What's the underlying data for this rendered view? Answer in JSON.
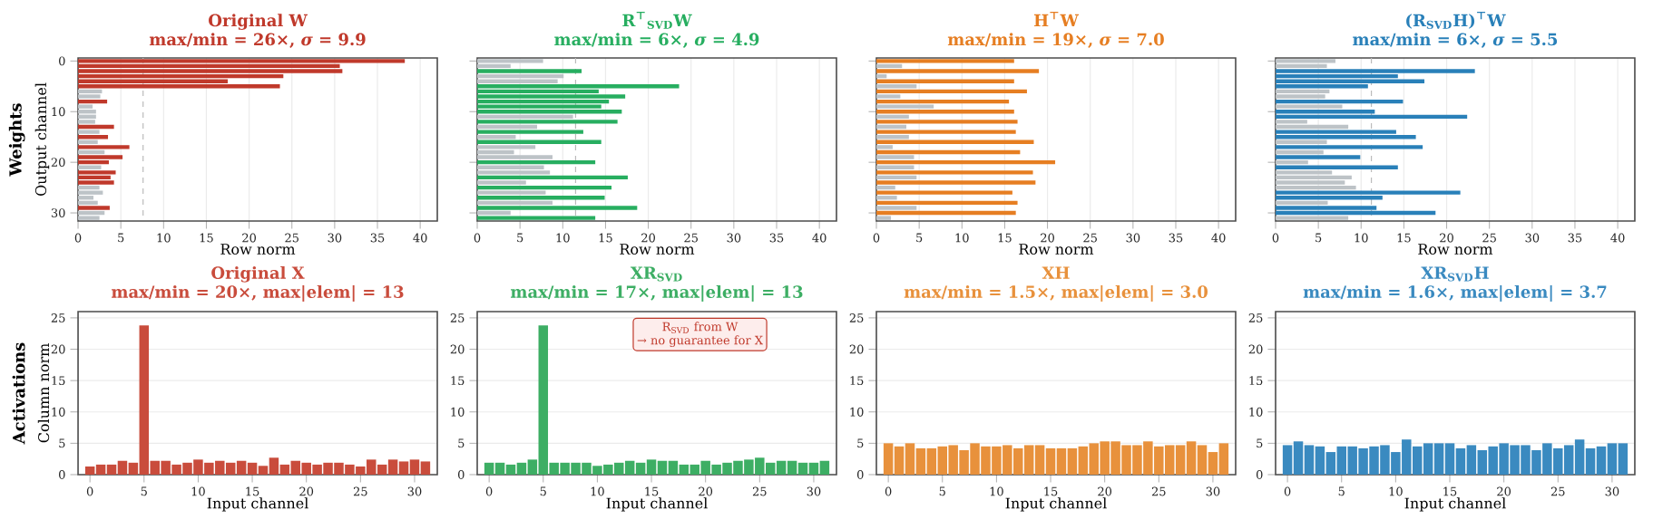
{
  "chart_data": [
    {
      "type": "bar",
      "orientation": "horizontal",
      "title": "Original W",
      "subtitle": "max/min = 26×,  *σ* = 9.9",
      "xlabel": "Row norm",
      "ylabel": "Output channel",
      "annotations": [
        "Weights"
      ],
      "color": "#c0392b",
      "grid": "x",
      "xlim": [
        0,
        42
      ],
      "xticks": [
        0,
        5,
        10,
        15,
        20,
        25,
        30,
        35,
        40
      ],
      "categories": [
        "0",
        null,
        null,
        null,
        null,
        null,
        null,
        null,
        null,
        null,
        "10",
        null,
        null,
        null,
        null,
        null,
        null,
        null,
        null,
        null,
        "20",
        null,
        null,
        null,
        null,
        null,
        null,
        null,
        null,
        null,
        "30",
        null
      ],
      "values": [
        38.2,
        30.6,
        30.9,
        24.0,
        17.5,
        23.6,
        2.8,
        2.6,
        3.4,
        1.7,
        2.1,
        2.1,
        2.0,
        4.2,
        2.5,
        3.5,
        2.3,
        6.0,
        3.1,
        5.2,
        3.6,
        2.7,
        4.4,
        3.8,
        4.2,
        2.5,
        2.9,
        1.8,
        2.3,
        3.7,
        3.1,
        2.5
      ],
      "colors": [
        "#c0392b",
        "#c0392b",
        "#c0392b",
        "#c0392b",
        "#c0392b",
        "#c0392b",
        "#bdc3c7",
        "#bdc3c7",
        "#c0392b",
        "#bdc3c7",
        "#bdc3c7",
        "#bdc3c7",
        "#bdc3c7",
        "#c0392b",
        "#bdc3c7",
        "#c0392b",
        "#bdc3c7",
        "#c0392b",
        "#bdc3c7",
        "#c0392b",
        "#c0392b",
        "#bdc3c7",
        "#c0392b",
        "#c0392b",
        "#c0392b",
        "#bdc3c7",
        "#bdc3c7",
        "#bdc3c7",
        "#bdc3c7",
        "#c0392b",
        "#bdc3c7",
        "#bdc3c7"
      ],
      "ref_lines": [
        {
          "axis": "x",
          "value": 7.6,
          "color": "#bbbbbb",
          "line_style": "dashed"
        }
      ]
    },
    {
      "type": "bar",
      "orientation": "horizontal",
      "title": "R$^{⊤}$$_{SVD}$W",
      "subtitle": "max/min = 6×,  *σ* = 4.9",
      "xlabel": "Row norm",
      "color": "#27ae60",
      "grid": "x",
      "tick_labels": "x",
      "xlim": [
        0,
        42
      ],
      "xticks": [
        0,
        5,
        10,
        15,
        20,
        25,
        30,
        35,
        40
      ],
      "categories": [
        "0",
        null,
        null,
        null,
        null,
        null,
        null,
        null,
        null,
        null,
        "10",
        null,
        null,
        null,
        null,
        null,
        null,
        null,
        null,
        null,
        "20",
        null,
        null,
        null,
        null,
        null,
        null,
        null,
        null,
        null,
        "30",
        null
      ],
      "values": [
        7.7,
        3.9,
        12.2,
        10.1,
        9.4,
        23.6,
        14.2,
        17.3,
        15.4,
        14.5,
        16.9,
        11.2,
        16.4,
        7.0,
        12.4,
        4.5,
        14.5,
        6.8,
        4.3,
        8.8,
        13.8,
        7.8,
        8.5,
        17.6,
        5.7,
        15.7,
        8.0,
        14.9,
        8.8,
        18.7,
        3.9,
        13.8
      ],
      "colors": [
        "#bdc3c7",
        "#bdc3c7",
        "#27ae60",
        "#bdc3c7",
        "#bdc3c7",
        "#27ae60",
        "#27ae60",
        "#27ae60",
        "#27ae60",
        "#27ae60",
        "#27ae60",
        "#bdc3c7",
        "#27ae60",
        "#bdc3c7",
        "#27ae60",
        "#bdc3c7",
        "#27ae60",
        "#bdc3c7",
        "#bdc3c7",
        "#bdc3c7",
        "#27ae60",
        "#bdc3c7",
        "#bdc3c7",
        "#27ae60",
        "#bdc3c7",
        "#27ae60",
        "#bdc3c7",
        "#27ae60",
        "#bdc3c7",
        "#27ae60",
        "#bdc3c7",
        "#27ae60"
      ],
      "ref_lines": [
        {
          "axis": "x",
          "value": 11.5,
          "color": "#bbbbbb",
          "line_style": "dashed"
        }
      ]
    },
    {
      "type": "bar",
      "orientation": "horizontal",
      "title": "H$^{⊤}$W",
      "subtitle": "max/min = 19×,  *σ* = 7.0",
      "xlabel": "Row norm",
      "color": "#e67e22",
      "grid": "x",
      "tick_labels": "x",
      "xlim": [
        0,
        42
      ],
      "xticks": [
        0,
        5,
        10,
        15,
        20,
        25,
        30,
        35,
        40
      ],
      "categories": [
        "0",
        null,
        null,
        null,
        null,
        null,
        null,
        null,
        null,
        null,
        "10",
        null,
        null,
        null,
        null,
        null,
        null,
        null,
        null,
        null,
        "20",
        null,
        null,
        null,
        null,
        null,
        null,
        null,
        null,
        null,
        "30",
        null
      ],
      "values": [
        16.1,
        3.0,
        19.0,
        1.2,
        16.1,
        4.7,
        17.6,
        2.8,
        15.5,
        6.7,
        16.1,
        3.8,
        16.5,
        3.5,
        16.3,
        3.8,
        18.4,
        1.9,
        16.8,
        4.4,
        20.9,
        4.4,
        18.3,
        4.7,
        18.6,
        2.2,
        15.9,
        2.4,
        16.5,
        4.7,
        16.3,
        1.7
      ],
      "colors": [
        "#e67e22",
        "#bdc3c7",
        "#e67e22",
        "#bdc3c7",
        "#e67e22",
        "#bdc3c7",
        "#e67e22",
        "#bdc3c7",
        "#e67e22",
        "#bdc3c7",
        "#e67e22",
        "#bdc3c7",
        "#e67e22",
        "#bdc3c7",
        "#e67e22",
        "#bdc3c7",
        "#e67e22",
        "#bdc3c7",
        "#e67e22",
        "#bdc3c7",
        "#e67e22",
        "#bdc3c7",
        "#e67e22",
        "#bdc3c7",
        "#e67e22",
        "#bdc3c7",
        "#e67e22",
        "#bdc3c7",
        "#e67e22",
        "#bdc3c7",
        "#e67e22",
        "#bdc3c7"
      ]
    },
    {
      "type": "bar",
      "orientation": "horizontal",
      "title": "(R$_{SVD}$H)$^{⊤}$W",
      "subtitle": "max/min = 6×,  *σ* = 5.5",
      "xlabel": "Row norm",
      "color": "#2980b9",
      "grid": "x",
      "tick_labels": "x",
      "xlim": [
        0,
        42
      ],
      "xticks": [
        0,
        5,
        10,
        15,
        20,
        25,
        30,
        35,
        40
      ],
      "categories": [
        "0",
        null,
        null,
        null,
        null,
        null,
        null,
        null,
        null,
        null,
        "10",
        null,
        null,
        null,
        null,
        null,
        null,
        null,
        null,
        null,
        "20",
        null,
        null,
        null,
        null,
        null,
        null,
        null,
        null,
        null,
        "30",
        null
      ],
      "values": [
        7.0,
        6.0,
        23.3,
        14.3,
        17.4,
        10.8,
        6.3,
        5.8,
        14.9,
        7.8,
        11.6,
        22.4,
        3.7,
        8.5,
        14.1,
        16.4,
        6.0,
        17.2,
        5.6,
        9.9,
        3.8,
        14.3,
        6.6,
        8.9,
        8.1,
        9.4,
        21.6,
        12.5,
        6.1,
        11.8,
        18.7,
        8.5
      ],
      "colors": [
        "#bdc3c7",
        "#bdc3c7",
        "#2980b9",
        "#2980b9",
        "#2980b9",
        "#2980b9",
        "#bdc3c7",
        "#bdc3c7",
        "#2980b9",
        "#bdc3c7",
        "#2980b9",
        "#2980b9",
        "#bdc3c7",
        "#bdc3c7",
        "#2980b9",
        "#2980b9",
        "#bdc3c7",
        "#2980b9",
        "#bdc3c7",
        "#2980b9",
        "#bdc3c7",
        "#2980b9",
        "#bdc3c7",
        "#bdc3c7",
        "#bdc3c7",
        "#bdc3c7",
        "#2980b9",
        "#2980b9",
        "#bdc3c7",
        "#2980b9",
        "#2980b9",
        "#bdc3c7"
      ],
      "ref_lines": [
        {
          "axis": "x",
          "value": 11.2,
          "color": "#bbbbbb",
          "line_style": "dashed"
        }
      ]
    },
    {
      "type": "bar",
      "title": "Original X",
      "subtitle": "max/min = 20×,  max|elem| = 13",
      "xlabel": "Input channel",
      "ylabel": "Column norm",
      "annotations": [
        "Activations"
      ],
      "color": "#c94c3c",
      "grid": "y",
      "ylim": [
        0,
        26
      ],
      "yticks": [
        0,
        5,
        10,
        15,
        20,
        25
      ],
      "categories": [
        "0",
        null,
        null,
        null,
        null,
        "5",
        null,
        null,
        null,
        null,
        "10",
        null,
        null,
        null,
        null,
        "15",
        null,
        null,
        null,
        null,
        "20",
        null,
        null,
        null,
        null,
        "25",
        null,
        null,
        null,
        null,
        "30",
        null
      ],
      "values": [
        1.3,
        1.6,
        1.6,
        2.2,
        1.9,
        23.8,
        2.2,
        2.2,
        1.6,
        1.9,
        2.4,
        1.9,
        2.2,
        1.9,
        2.2,
        1.9,
        1.4,
        2.7,
        1.6,
        2.2,
        1.9,
        1.6,
        1.9,
        1.9,
        1.6,
        1.3,
        2.4,
        1.6,
        2.4,
        2.1,
        2.4,
        2.1
      ]
    },
    {
      "type": "bar",
      "title": "XR$_{SVD}$",
      "subtitle": "max/min = 17×,  max|elem| = 13",
      "xlabel": "Input channel",
      "annotations": [
        "R$_{SVD}$ from W",
        "→ no guarantee for X"
      ],
      "color": "#3dae64",
      "grid": "y",
      "ylim": [
        0,
        26
      ],
      "yticks": [
        0,
        5,
        10,
        15,
        20,
        25
      ],
      "categories": [
        "0",
        null,
        null,
        null,
        null,
        "5",
        null,
        null,
        null,
        null,
        "10",
        null,
        null,
        null,
        null,
        "15",
        null,
        null,
        null,
        null,
        "20",
        null,
        null,
        null,
        null,
        "25",
        null,
        null,
        null,
        null,
        "30",
        null
      ],
      "values": [
        1.9,
        1.9,
        1.6,
        1.9,
        2.4,
        23.8,
        1.9,
        1.9,
        1.9,
        1.9,
        1.4,
        1.6,
        1.9,
        2.2,
        1.9,
        2.4,
        2.2,
        2.2,
        1.6,
        1.6,
        2.2,
        1.6,
        1.9,
        2.2,
        2.4,
        2.7,
        1.9,
        2.2,
        2.2,
        1.9,
        1.9,
        2.2
      ]
    },
    {
      "type": "bar",
      "title": "XH",
      "subtitle": "max/min = 1.5×,  max|elem| = 3.0",
      "xlabel": "Input channel",
      "color": "#e8913c",
      "grid": "y",
      "ylim": [
        0,
        26
      ],
      "yticks": [
        0,
        5,
        10,
        15,
        20,
        25
      ],
      "categories": [
        "0",
        null,
        null,
        null,
        null,
        "5",
        null,
        null,
        null,
        null,
        "10",
        null,
        null,
        null,
        null,
        "15",
        null,
        null,
        null,
        null,
        "20",
        null,
        null,
        null,
        null,
        "25",
        null,
        null,
        null,
        null,
        "30",
        null
      ],
      "values": [
        5.0,
        4.5,
        5.0,
        4.2,
        4.2,
        4.5,
        4.7,
        3.9,
        5.0,
        4.5,
        4.5,
        4.7,
        4.2,
        4.7,
        4.7,
        4.2,
        4.2,
        4.2,
        4.5,
        5.0,
        5.3,
        5.3,
        4.7,
        4.7,
        5.3,
        4.5,
        4.7,
        4.7,
        5.3,
        4.7,
        3.6,
        5.0
      ]
    },
    {
      "type": "bar",
      "title": "XR$_{SVD}$H",
      "subtitle": "max/min = 1.6×,  max|elem| = 3.7",
      "xlabel": "Input channel",
      "color": "#3a8ac0",
      "grid": "y",
      "ylim": [
        0,
        26
      ],
      "yticks": [
        0,
        5,
        10,
        15,
        20,
        25
      ],
      "categories": [
        "0",
        null,
        null,
        null,
        null,
        "5",
        null,
        null,
        null,
        null,
        "10",
        null,
        null,
        null,
        null,
        "15",
        null,
        null,
        null,
        null,
        "20",
        null,
        null,
        null,
        null,
        "25",
        null,
        null,
        null,
        null,
        "30",
        null
      ],
      "values": [
        4.7,
        5.3,
        4.7,
        4.5,
        3.6,
        4.5,
        4.5,
        4.2,
        4.5,
        4.7,
        3.6,
        5.6,
        4.5,
        5.0,
        5.0,
        5.0,
        4.2,
        4.7,
        3.9,
        4.5,
        5.0,
        4.7,
        4.7,
        3.9,
        5.0,
        4.2,
        4.7,
        5.6,
        4.2,
        4.5,
        5.0,
        5.0
      ]
    }
  ]
}
